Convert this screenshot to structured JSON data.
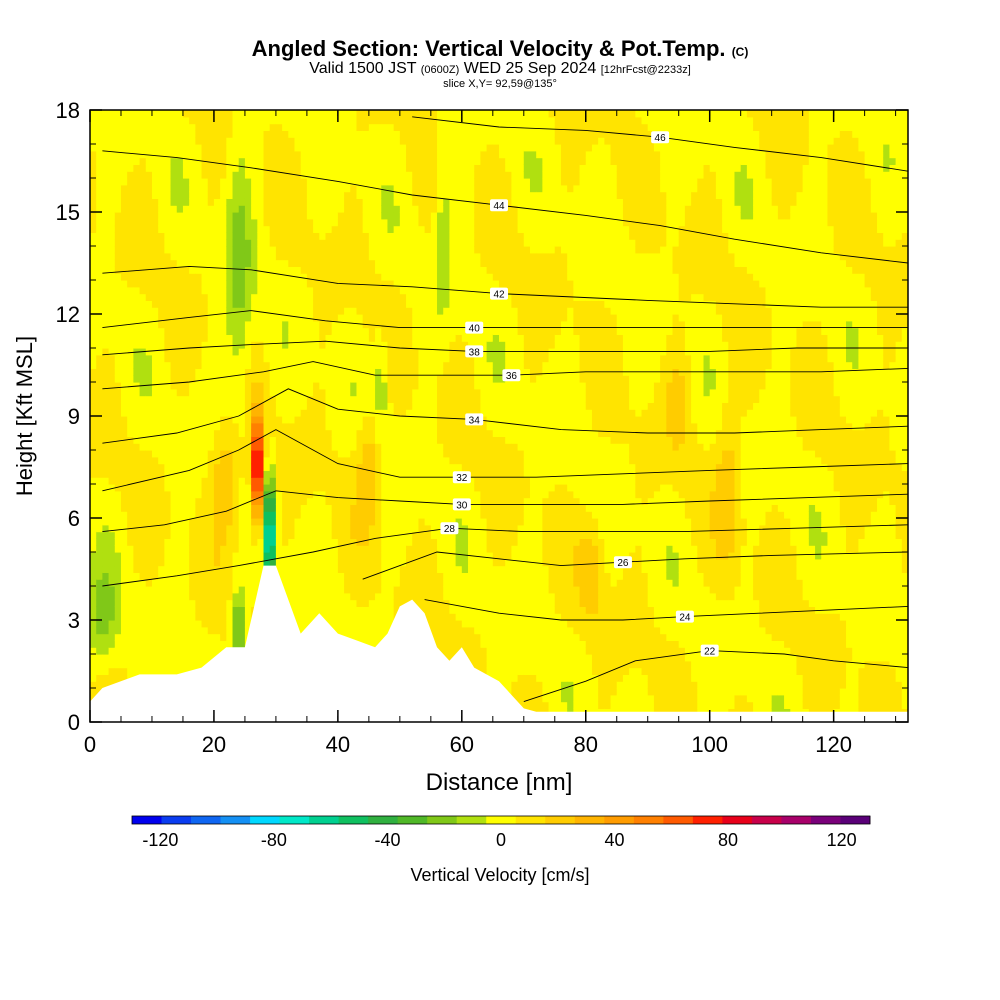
{
  "header": {
    "title": "Angled Section: Vertical Velocity & Pot.Temp.",
    "title_suffix": "(C)",
    "subtitle_main": "Valid 1500 JST",
    "subtitle_z": "(0600Z)",
    "subtitle_date": "WED 25 Sep 2024",
    "subtitle_fcst": "[12hrFcst@2233z]",
    "slice": "slice X,Y= 92,59@135°"
  },
  "chart_data": {
    "type": "heatmap",
    "xlabel": "Distance [nm]",
    "ylabel": "Height [Kft MSL]",
    "xlim": [
      0,
      132
    ],
    "ylim": [
      0,
      18
    ],
    "x_ticks": [
      0,
      20,
      40,
      60,
      80,
      100,
      120
    ],
    "y_ticks": [
      0,
      3,
      6,
      9,
      12,
      15,
      18
    ],
    "grid": false,
    "colorbar": {
      "label": "Vertical Velocity [cm/s]",
      "range": [
        -130,
        130
      ],
      "tick_values": [
        -120,
        -80,
        -40,
        0,
        40,
        80,
        120
      ],
      "tick_labels": [
        "-120",
        "-80",
        "-40",
        "0",
        "40",
        "80",
        "120"
      ],
      "colors": [
        "#0000ee",
        "#0a3cf0",
        "#0f66f2",
        "#1490f4",
        "#00d8ff",
        "#00e8c8",
        "#00d090",
        "#10c060",
        "#30b040",
        "#50b828",
        "#80c818",
        "#b0e010",
        "#ffff00",
        "#ffe400",
        "#ffcc00",
        "#ffb400",
        "#ff9c00",
        "#ff8000",
        "#ff5a00",
        "#ff2000",
        "#e8001a",
        "#c8004a",
        "#a8006a",
        "#7a007a",
        "#5a0078"
      ]
    },
    "series": [
      {
        "name": "22",
        "points": [
          [
            70,
            0.6
          ],
          [
            80,
            1.2
          ],
          [
            88,
            1.8
          ],
          [
            100,
            2.1
          ],
          [
            112,
            2.0
          ],
          [
            120,
            1.8
          ],
          [
            132,
            1.6
          ]
        ]
      },
      {
        "name": "24",
        "points": [
          [
            54,
            3.6
          ],
          [
            66,
            3.2
          ],
          [
            76,
            3.0
          ],
          [
            86,
            3.0
          ],
          [
            96,
            3.1
          ],
          [
            108,
            3.2
          ],
          [
            120,
            3.3
          ],
          [
            132,
            3.4
          ]
        ]
      },
      {
        "name": "26",
        "points": [
          [
            44,
            4.2
          ],
          [
            56,
            5.0
          ],
          [
            66,
            4.8
          ],
          [
            76,
            4.6
          ],
          [
            86,
            4.7
          ],
          [
            96,
            4.8
          ],
          [
            110,
            4.9
          ],
          [
            132,
            5.0
          ]
        ]
      },
      {
        "name": "28",
        "points": [
          [
            2,
            4.0
          ],
          [
            14,
            4.3
          ],
          [
            24,
            4.6
          ],
          [
            36,
            5.0
          ],
          [
            46,
            5.4
          ],
          [
            58,
            5.7
          ],
          [
            70,
            5.6
          ],
          [
            82,
            5.6
          ],
          [
            96,
            5.6
          ],
          [
            114,
            5.7
          ],
          [
            132,
            5.8
          ]
        ]
      },
      {
        "name": "30",
        "points": [
          [
            2,
            5.6
          ],
          [
            12,
            5.8
          ],
          [
            22,
            6.2
          ],
          [
            30,
            6.8
          ],
          [
            40,
            6.6
          ],
          [
            50,
            6.5
          ],
          [
            60,
            6.4
          ],
          [
            72,
            6.4
          ],
          [
            86,
            6.4
          ],
          [
            100,
            6.5
          ],
          [
            116,
            6.6
          ],
          [
            132,
            6.7
          ]
        ]
      },
      {
        "name": "32",
        "points": [
          [
            2,
            6.8
          ],
          [
            16,
            7.4
          ],
          [
            24,
            8.0
          ],
          [
            30,
            8.6
          ],
          [
            40,
            7.6
          ],
          [
            50,
            7.2
          ],
          [
            60,
            7.2
          ],
          [
            72,
            7.2
          ],
          [
            86,
            7.3
          ],
          [
            100,
            7.4
          ],
          [
            116,
            7.5
          ],
          [
            132,
            7.6
          ]
        ]
      },
      {
        "name": "34",
        "points": [
          [
            2,
            8.2
          ],
          [
            14,
            8.5
          ],
          [
            24,
            9.0
          ],
          [
            32,
            9.8
          ],
          [
            40,
            9.2
          ],
          [
            50,
            9.0
          ],
          [
            62,
            8.9
          ],
          [
            76,
            8.6
          ],
          [
            90,
            8.5
          ],
          [
            104,
            8.5
          ],
          [
            118,
            8.6
          ],
          [
            132,
            8.7
          ]
        ]
      },
      {
        "name": "36",
        "points": [
          [
            2,
            9.8
          ],
          [
            16,
            10.0
          ],
          [
            28,
            10.3
          ],
          [
            36,
            10.6
          ],
          [
            46,
            10.2
          ],
          [
            56,
            10.2
          ],
          [
            68,
            10.2
          ],
          [
            80,
            10.3
          ],
          [
            92,
            10.3
          ],
          [
            104,
            10.3
          ],
          [
            118,
            10.3
          ],
          [
            132,
            10.4
          ]
        ]
      },
      {
        "name": "38",
        "points": [
          [
            2,
            10.8
          ],
          [
            16,
            11.0
          ],
          [
            26,
            11.1
          ],
          [
            38,
            11.2
          ],
          [
            50,
            11.0
          ],
          [
            62,
            10.9
          ],
          [
            74,
            10.9
          ],
          [
            86,
            10.9
          ],
          [
            100,
            10.9
          ],
          [
            114,
            11.0
          ],
          [
            132,
            11.0
          ]
        ]
      },
      {
        "name": "40",
        "points": [
          [
            2,
            11.6
          ],
          [
            16,
            11.9
          ],
          [
            26,
            12.1
          ],
          [
            38,
            11.8
          ],
          [
            50,
            11.6
          ],
          [
            62,
            11.6
          ],
          [
            74,
            11.6
          ],
          [
            86,
            11.6
          ],
          [
            100,
            11.6
          ],
          [
            114,
            11.6
          ],
          [
            132,
            11.6
          ]
        ]
      },
      {
        "name": "42",
        "points": [
          [
            2,
            13.2
          ],
          [
            16,
            13.4
          ],
          [
            26,
            13.3
          ],
          [
            40,
            12.9
          ],
          [
            52,
            12.8
          ],
          [
            66,
            12.6
          ],
          [
            78,
            12.5
          ],
          [
            90,
            12.4
          ],
          [
            104,
            12.3
          ],
          [
            118,
            12.2
          ],
          [
            132,
            12.2
          ]
        ]
      },
      {
        "name": "44",
        "points": [
          [
            2,
            16.8
          ],
          [
            14,
            16.6
          ],
          [
            26,
            16.3
          ],
          [
            40,
            15.9
          ],
          [
            52,
            15.5
          ],
          [
            66,
            15.2
          ],
          [
            80,
            14.9
          ],
          [
            92,
            14.6
          ],
          [
            104,
            14.2
          ],
          [
            118,
            13.8
          ],
          [
            132,
            13.5
          ]
        ]
      },
      {
        "name": "46",
        "points": [
          [
            52,
            17.8
          ],
          [
            66,
            17.5
          ],
          [
            80,
            17.4
          ],
          [
            92,
            17.2
          ],
          [
            104,
            16.9
          ],
          [
            118,
            16.6
          ],
          [
            132,
            16.2
          ]
        ]
      }
    ],
    "terrain": [
      [
        0,
        0.6
      ],
      [
        2,
        1.0
      ],
      [
        8,
        1.4
      ],
      [
        14,
        1.4
      ],
      [
        18,
        1.6
      ],
      [
        22,
        2.2
      ],
      [
        25,
        2.2
      ],
      [
        27,
        3.8
      ],
      [
        28,
        4.6
      ],
      [
        30,
        4.6
      ],
      [
        32,
        3.6
      ],
      [
        34,
        2.6
      ],
      [
        37,
        3.2
      ],
      [
        40,
        2.6
      ],
      [
        43,
        2.4
      ],
      [
        46,
        2.2
      ],
      [
        48,
        2.6
      ],
      [
        50,
        3.4
      ],
      [
        52,
        3.6
      ],
      [
        54,
        3.2
      ],
      [
        56,
        2.2
      ],
      [
        58,
        1.8
      ],
      [
        60,
        2.2
      ],
      [
        62,
        1.6
      ],
      [
        66,
        1.2
      ],
      [
        70,
        0.4
      ],
      [
        72,
        0.3
      ],
      [
        132,
        0.3
      ]
    ]
  }
}
